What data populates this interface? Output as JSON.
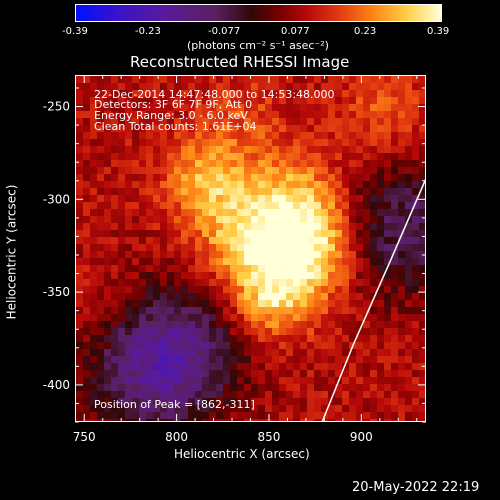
{
  "colorbar": {
    "ticks": [
      "-0.39",
      "-0.23",
      "-0.077",
      "0.077",
      "0.23",
      "0.39"
    ],
    "unit_label": "(photons cm⁻² s⁻¹ asec⁻²)"
  },
  "header": {
    "annotation_lines": [
      "22-Dec-2014 14:47:48.000 to 14:53:48.000",
      "Detectors: 3F 6F 7F 9F, Att 0",
      "Energy Range: 3.0 - 6.0 keV",
      "Clean     Total counts: 1.61E+04"
    ],
    "peak_label": "Position of Peak = [862,-311]"
  },
  "footer": {
    "timestamp": "20-May-2022 22:19"
  },
  "chart_data": {
    "type": "heatmap",
    "title": "Reconstructed RHESSI Image",
    "xlabel": "Heliocentric X (arcsec)",
    "ylabel": "Heliocentric Y (arcsec)",
    "xlim": [
      745,
      935
    ],
    "ylim": [
      -420,
      -233
    ],
    "x_ticks": [
      750,
      800,
      850,
      900
    ],
    "y_ticks": [
      -250,
      -300,
      -350,
      -400
    ],
    "color_range": [
      -0.39,
      0.39
    ],
    "peak": [
      862,
      -311
    ],
    "limb": [
      [
        935,
        -287
      ],
      [
        915,
        -333
      ],
      [
        895,
        -378
      ],
      [
        878,
        -420
      ]
    ],
    "sources": [
      {
        "x": 862,
        "y": -311,
        "v": 0.39
      },
      {
        "x": 850,
        "y": -352,
        "v": 0.3
      },
      {
        "x": 815,
        "y": -288,
        "v": 0.26
      },
      {
        "x": 828,
        "y": -322,
        "v": 0.2
      },
      {
        "x": 876,
        "y": -332,
        "v": 0.2
      },
      {
        "x": 912,
        "y": -253,
        "v": 0.18
      },
      {
        "x": 835,
        "y": -254,
        "v": 0.15
      },
      {
        "x": 762,
        "y": -355,
        "v": 0.12
      }
    ],
    "negative_regions": [
      {
        "x": 785,
        "y": -393,
        "v": -0.25
      },
      {
        "x": 803,
        "y": -377,
        "v": -0.2
      },
      {
        "x": 920,
        "y": -315,
        "v": -0.25
      }
    ]
  }
}
